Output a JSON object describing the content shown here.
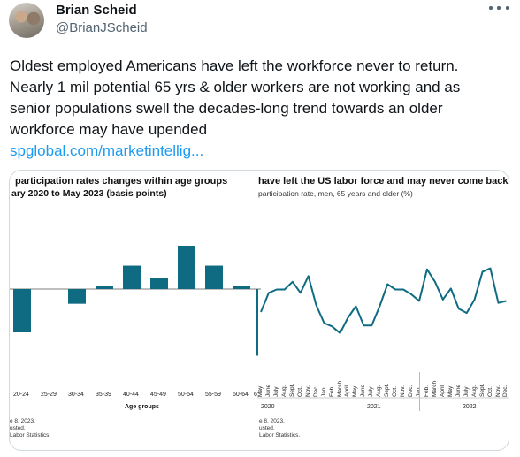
{
  "author": {
    "display_name": "Brian Scheid",
    "handle": "@BrianJScheid"
  },
  "tweet": {
    "text": "Oldest employed Americans have left the workforce never to return.\nNearly 1 mil potential 65 yrs & older workers are not working and as\nsenior populations swell the decades-long trend towards an older\nworkforce may have upended",
    "link": "spglobal.com/marketintellig..."
  },
  "left_chart": {
    "title": "participation rates changes within age groups",
    "subtitle": "ary 2020 to May 2023 (basis points)",
    "xlabel": "Age groups",
    "footnote1": "e 8, 2023.",
    "footnote2": "usted.",
    "footnote3": "Labor Statistics.",
    "bar_color": "#0f6b82"
  },
  "right_chart": {
    "title": "have left the US labor force and may never come back",
    "subtitle": "participation rate, men, 65 years and older (%)",
    "footnote1": "e 8, 2023.",
    "footnote2": "usted.",
    "footnote3": "Labor Statistics.",
    "line_color": "#0f6b82"
  },
  "chart_data": [
    {
      "type": "bar",
      "categories": [
        "20-24",
        "25-29",
        "30-34",
        "35-39",
        "40-44",
        "45-49",
        "50-54",
        "55-59",
        "60-64",
        "6"
      ],
      "values": [
        -50,
        0,
        -17,
        4,
        27,
        13,
        50,
        27,
        4,
        -77
      ],
      "xlabel": "Age groups",
      "ylabel": ""
    },
    {
      "type": "line",
      "year_labels": [
        "2020",
        "2021",
        "2022"
      ],
      "month_labels": [
        "May",
        "June",
        "July",
        "Aug.",
        "Sept.",
        "Oct.",
        "Nov.",
        "Dec.",
        "Jan.",
        "Feb.",
        "March",
        "April",
        "May",
        "June",
        "July",
        "Aug.",
        "Sept.",
        "Oct.",
        "Nov.",
        "Dec.",
        "Jan.",
        "Feb.",
        "March",
        "April",
        "May",
        "June",
        "July",
        "Aug.",
        "Sept.",
        "Oct.",
        "Nov.",
        "Dec."
      ],
      "values": [
        0.0,
        0.57,
        0.67,
        0.67,
        0.9,
        0.57,
        1.07,
        0.2,
        -0.33,
        -0.43,
        -0.63,
        -0.17,
        0.17,
        -0.4,
        -0.4,
        0.17,
        0.83,
        0.67,
        0.67,
        0.53,
        0.33,
        1.27,
        0.9,
        0.37,
        0.7,
        0.1,
        -0.03,
        0.37,
        1.2,
        1.3,
        0.27,
        0.33
      ]
    }
  ]
}
